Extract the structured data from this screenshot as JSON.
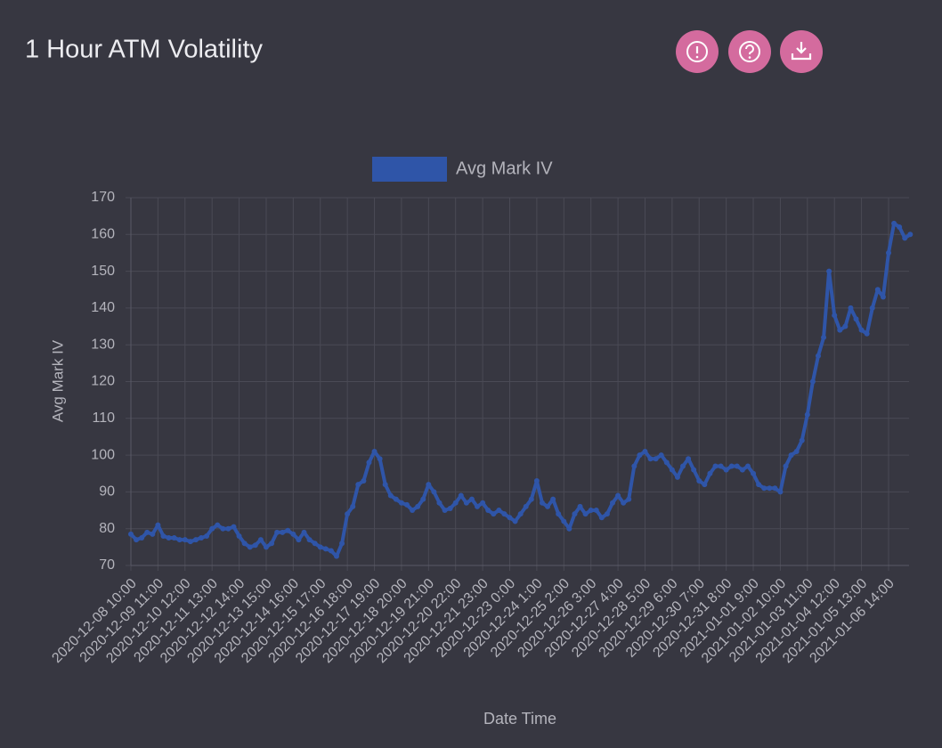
{
  "chart_data": {
    "type": "line",
    "title": "1 Hour ATM Volatility",
    "y_label": "Avg Mark IV",
    "x_label": "Date Time",
    "categories": [
      "2020-12-08 10:00",
      null,
      null,
      null,
      null,
      "2020-12-09 11:00",
      null,
      null,
      null,
      null,
      "2020-12-10 12:00",
      null,
      null,
      null,
      null,
      "2020-12-11 13:00",
      null,
      null,
      null,
      null,
      "2020-12-12 14:00",
      null,
      null,
      null,
      null,
      "2020-12-13 15:00",
      null,
      null,
      null,
      null,
      "2020-12-14 16:00",
      null,
      null,
      null,
      null,
      "2020-12-15 17:00",
      null,
      null,
      null,
      null,
      "2020-12-16 18:00",
      null,
      null,
      null,
      null,
      "2020-12-17 19:00",
      null,
      null,
      null,
      null,
      "2020-12-18 20:00",
      null,
      null,
      null,
      null,
      "2020-12-19 21:00",
      null,
      null,
      null,
      null,
      "2020-12-20 22:00",
      null,
      null,
      null,
      null,
      "2020-12-21 23:00",
      null,
      null,
      null,
      null,
      "2020-12-23 0:00",
      null,
      null,
      null,
      null,
      "2020-12-24 1:00",
      null,
      null,
      null,
      null,
      "2020-12-25 2:00",
      null,
      null,
      null,
      null,
      "2020-12-26 3:00",
      null,
      null,
      null,
      null,
      "2020-12-27 4:00",
      null,
      null,
      null,
      null,
      "2020-12-28 5:00",
      null,
      null,
      null,
      null,
      "2020-12-29 6:00",
      null,
      null,
      null,
      null,
      "2020-12-30 7:00",
      null,
      null,
      null,
      null,
      "2020-12-31 8:00",
      null,
      null,
      null,
      null,
      "2021-01-01 9:00",
      null,
      null,
      null,
      null,
      "2021-01-02 10:00",
      null,
      null,
      null,
      null,
      "2021-01-03 11:00",
      null,
      null,
      null,
      null,
      "2021-01-04 12:00",
      null,
      null,
      null,
      null,
      "2021-01-05 13:00",
      null,
      null,
      null,
      null,
      "2021-01-06 14:00",
      null,
      null,
      null,
      null
    ],
    "series": [
      {
        "name": "Avg Mark IV",
        "color": "#2f55a8",
        "values": [
          78.5,
          77,
          77.5,
          79,
          78.5,
          81,
          78,
          77.5,
          77.5,
          77,
          77,
          76.5,
          77,
          77.5,
          78,
          80,
          81,
          80,
          80,
          80.5,
          78,
          76,
          75,
          75.5,
          77,
          75,
          76,
          79,
          79,
          79.5,
          78.5,
          77,
          79,
          77,
          76,
          75,
          74.5,
          74,
          72.5,
          76,
          84,
          86,
          92,
          93,
          98,
          101,
          99,
          92,
          89,
          88,
          87,
          86.5,
          85,
          86,
          88,
          92,
          90,
          87,
          85,
          85.5,
          87,
          89,
          87,
          88,
          86,
          87,
          85,
          84,
          85,
          84,
          83,
          82,
          84,
          86,
          88,
          93,
          87,
          86,
          88,
          84,
          82,
          80,
          84,
          86,
          84,
          85,
          85,
          83,
          84,
          87,
          89,
          87,
          88,
          97,
          100,
          101,
          99,
          99,
          100,
          98,
          96,
          94,
          97,
          99,
          96,
          93,
          92,
          95,
          97,
          97,
          96,
          97,
          97,
          96,
          97,
          95,
          92,
          91,
          91,
          91,
          90,
          97,
          100,
          101,
          104,
          111,
          120,
          127,
          132,
          150,
          138,
          134,
          135,
          140,
          137,
          134,
          133,
          140,
          145,
          143,
          155,
          163,
          162,
          159,
          160
        ]
      }
    ],
    "ylim": [
      70,
      170
    ],
    "yticks": [
      70,
      80,
      90,
      100,
      110,
      120,
      130,
      140,
      150,
      160,
      170
    ],
    "grid": true
  }
}
